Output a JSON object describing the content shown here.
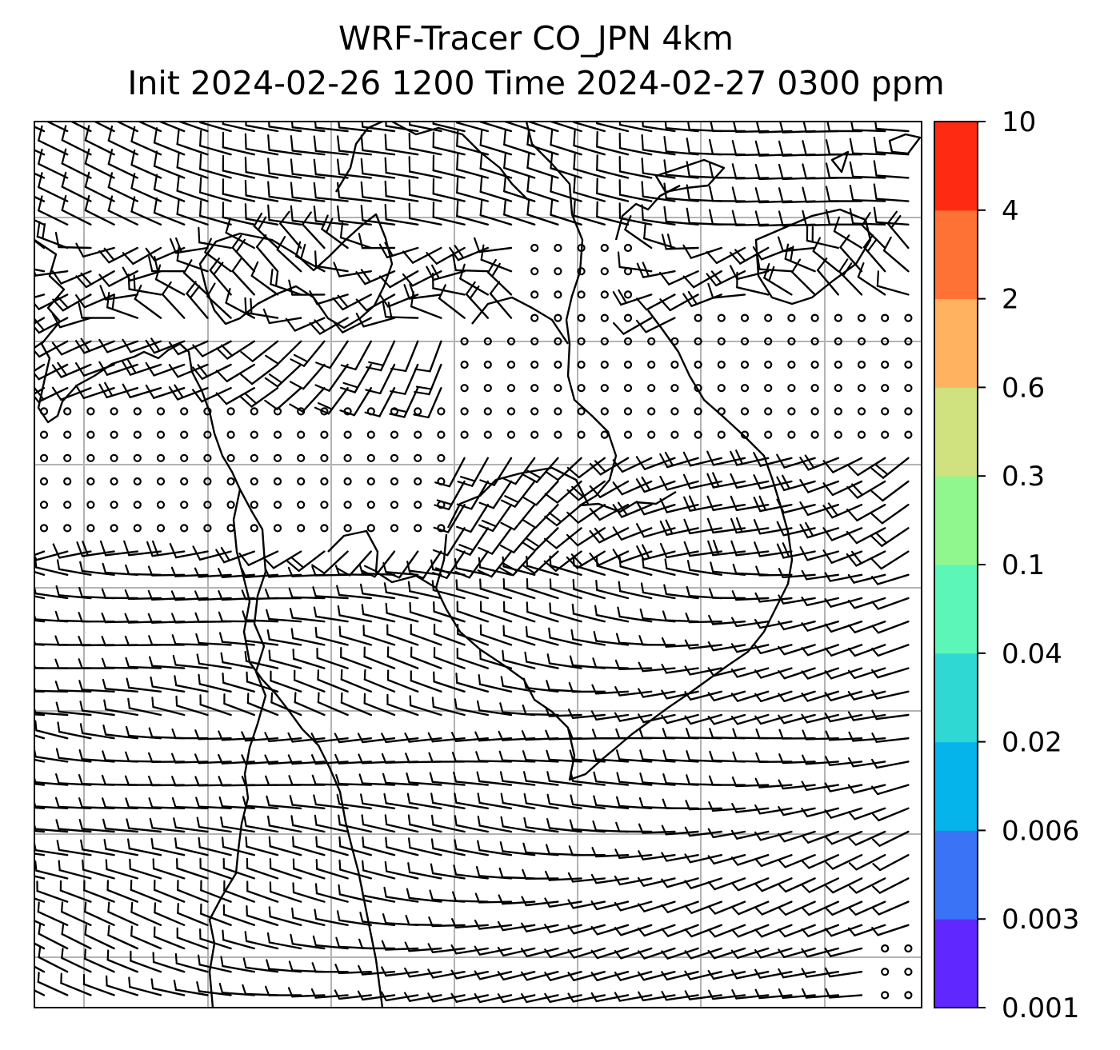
{
  "title": {
    "line1": "WRF-Tracer CO_JPN 4km",
    "line2": "Init 2024-02-26 1200 Time 2024-02-27 0300 ppm"
  },
  "colorbar": {
    "ticks": [
      "0.001",
      "0.003",
      "0.006",
      "0.02",
      "0.04",
      "0.1",
      "0.3",
      "0.6",
      "2",
      "4",
      "10"
    ],
    "colors": [
      "#6127ff",
      "#3a73f6",
      "#04b4ea",
      "#2fd8d3",
      "#5cf7b8",
      "#8ff78e",
      "#cfe27f",
      "#ffb25f",
      "#ff7235",
      "#ff2a12"
    ]
  },
  "map": {
    "gridlines": "on",
    "gridline_color": "#b3b3b3",
    "symbol_key": [
      "wind-barb",
      "calm-circle"
    ]
  }
}
